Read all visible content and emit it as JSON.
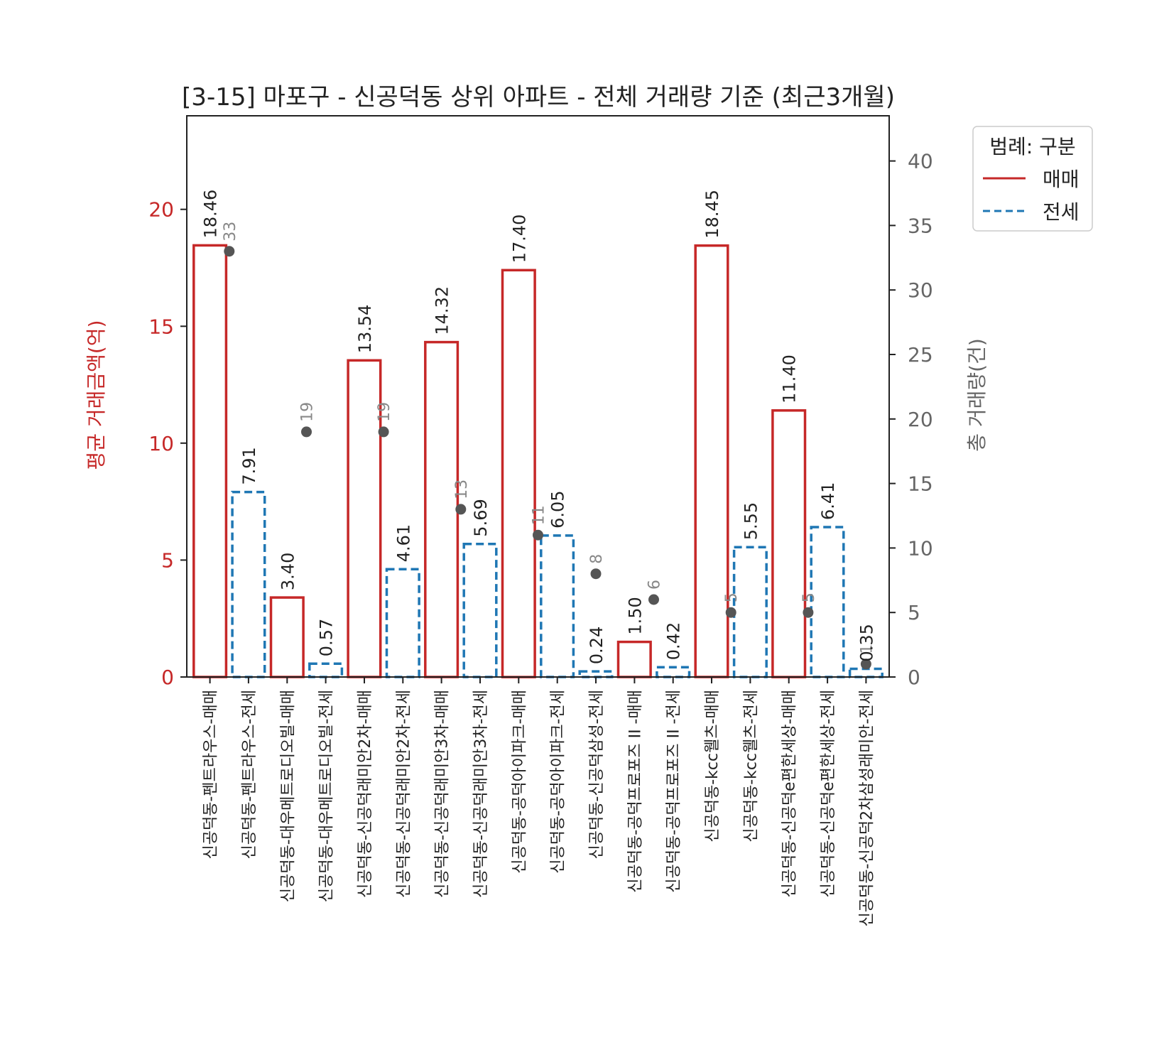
{
  "chart_data": {
    "type": "bar",
    "title": "[3-15] 마포구 - 신공덕동 상위 아파트 - 전체 거래량 기준 (최근3개월)",
    "ylabel": "평균 거래금액(억)",
    "y2label": "총 거래량(건)",
    "ylim": [
      0,
      24
    ],
    "y2lim": [
      0,
      43.5
    ],
    "yticks": [
      "0",
      "5",
      "10",
      "15",
      "20"
    ],
    "y2ticks": [
      "0",
      "5",
      "10",
      "15",
      "20",
      "25",
      "30",
      "35",
      "40"
    ],
    "categories": [
      "신공덕동-펜트라우스-매매",
      "신공덕동-펜트라우스-전세",
      "신공덕동-대우메트로디오빌-매매",
      "신공덕동-대우메트로디오빌-전세",
      "신공덕동-신공덕래미안2차-매매",
      "신공덕동-신공덕래미안2차-전세",
      "신공덕동-신공덕래미안3차-매매",
      "신공덕동-신공덕래미안3차-전세",
      "신공덕동-공덕아이파크-매매",
      "신공덕동-공덕아이파크-전세",
      "신공덕동-신공덕삼성-전세",
      "신공덕동-공덕프로포즈 II -매매",
      "신공덕동-공덕프로포즈 II -전세",
      "신공덕동-kcc웰츠-매매",
      "신공덕동-kcc웰츠-전세",
      "신공덕동-신공덕e편한세상-매매",
      "신공덕동-신공덕e편한세상-전세",
      "신공덕동-신공덕2차삼성래미안-전세"
    ],
    "values": [
      18.46,
      7.91,
      3.4,
      0.57,
      13.54,
      4.61,
      14.32,
      5.69,
      17.4,
      6.05,
      0.24,
      1.5,
      0.42,
      18.45,
      5.55,
      11.4,
      6.41,
      0.35
    ],
    "value_labels": [
      "18.46",
      "7.91",
      "3.40",
      "0.57",
      "13.54",
      "4.61",
      "14.32",
      "5.69",
      "17.40",
      "6.05",
      "0.24",
      "1.50",
      "0.42",
      "18.45",
      "5.55",
      "11.40",
      "6.41",
      "0.35"
    ],
    "bar_types": [
      "매매",
      "전세",
      "매매",
      "전세",
      "매매",
      "전세",
      "매매",
      "전세",
      "매매",
      "전세",
      "전세",
      "매매",
      "전세",
      "매매",
      "전세",
      "매매",
      "전세",
      "전세"
    ],
    "volume_points": [
      {
        "x": 0.5,
        "value": 33,
        "label": "33"
      },
      {
        "x": 2.5,
        "value": 19,
        "label": "19"
      },
      {
        "x": 4.5,
        "value": 19,
        "label": "19"
      },
      {
        "x": 6.5,
        "value": 13,
        "label": "13"
      },
      {
        "x": 8.5,
        "value": 11,
        "label": "11"
      },
      {
        "x": 10.0,
        "value": 8,
        "label": "8"
      },
      {
        "x": 11.5,
        "value": 6,
        "label": "6"
      },
      {
        "x": 13.5,
        "value": 5,
        "label": "5"
      },
      {
        "x": 15.5,
        "value": 5,
        "label": "5"
      },
      {
        "x": 17.0,
        "value": 1,
        "label": "1"
      }
    ],
    "legend": {
      "title": "범례: 구분",
      "position": "outside-top-right",
      "entries": [
        {
          "label": "매매",
          "color": "#c62828",
          "style": "solid"
        },
        {
          "label": "전세",
          "color": "#1f77b4",
          "style": "dashed"
        }
      ]
    },
    "colors": {
      "sale": "#c62828",
      "jeonse": "#1f77b4",
      "point": "#555555",
      "left_axis": "#c62828",
      "right_axis": "#666666"
    },
    "grid": false
  }
}
